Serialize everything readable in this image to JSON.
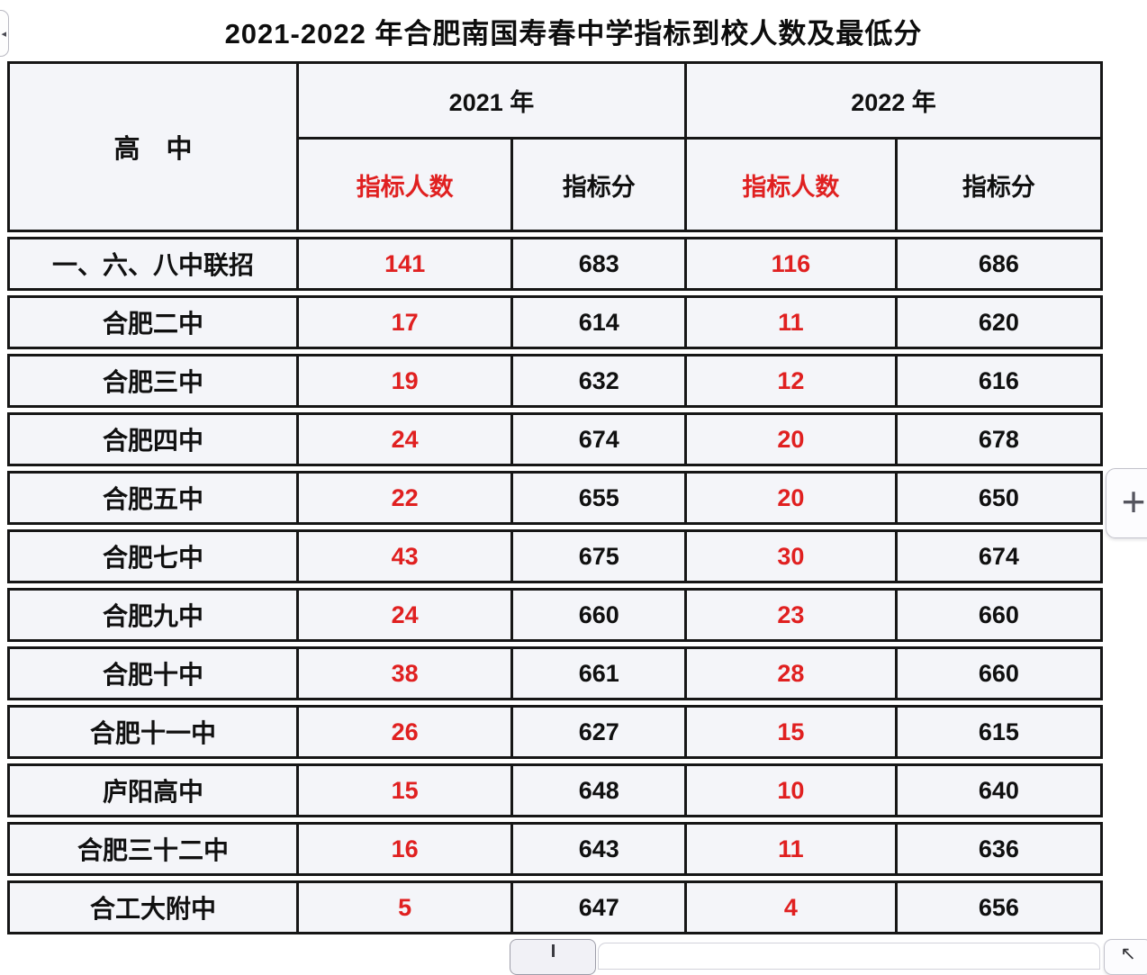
{
  "page": {
    "title": "2021-2022 年合肥南国寿春中学指标到校人数及最低分"
  },
  "table": {
    "school_header": "高　中",
    "years": [
      {
        "label": "2021 年",
        "count_header": "指标人数",
        "score_header": "指标分"
      },
      {
        "label": "2022 年",
        "count_header": "指标人数",
        "score_header": "指标分"
      }
    ],
    "rows": [
      {
        "school": "一、六、八中联招",
        "c2021": "141",
        "s2021": "683",
        "c2022": "116",
        "s2022": "686"
      },
      {
        "school": "合肥二中",
        "c2021": "17",
        "s2021": "614",
        "c2022": "11",
        "s2022": "620"
      },
      {
        "school": "合肥三中",
        "c2021": "19",
        "s2021": "632",
        "c2022": "12",
        "s2022": "616"
      },
      {
        "school": "合肥四中",
        "c2021": "24",
        "s2021": "674",
        "c2022": "20",
        "s2022": "678"
      },
      {
        "school": "合肥五中",
        "c2021": "22",
        "s2021": "655",
        "c2022": "20",
        "s2022": "650"
      },
      {
        "school": "合肥七中",
        "c2021": "43",
        "s2021": "675",
        "c2022": "30",
        "s2022": "674"
      },
      {
        "school": "合肥九中",
        "c2021": "24",
        "s2021": "660",
        "c2022": "23",
        "s2022": "660"
      },
      {
        "school": "合肥十中",
        "c2021": "38",
        "s2021": "661",
        "c2022": "28",
        "s2022": "660"
      },
      {
        "school": "合肥十一中",
        "c2021": "26",
        "s2021": "627",
        "c2022": "15",
        "s2022": "615"
      },
      {
        "school": "庐阳高中",
        "c2021": "15",
        "s2021": "648",
        "c2022": "10",
        "s2022": "640"
      },
      {
        "school": "合肥三十二中",
        "c2021": "16",
        "s2021": "643",
        "c2022": "11",
        "s2022": "636"
      },
      {
        "school": "合工大附中",
        "c2021": "5",
        "s2021": "647",
        "c2022": "4",
        "s2022": "656"
      }
    ]
  },
  "controls": {
    "zoom_in_glyph": "+",
    "restore_glyph": "↖",
    "left_edge_glyph": "◂"
  },
  "colors": {
    "highlight_red": "#e02020",
    "cell_background": "#f4f5f9",
    "table_border": "#161616"
  }
}
